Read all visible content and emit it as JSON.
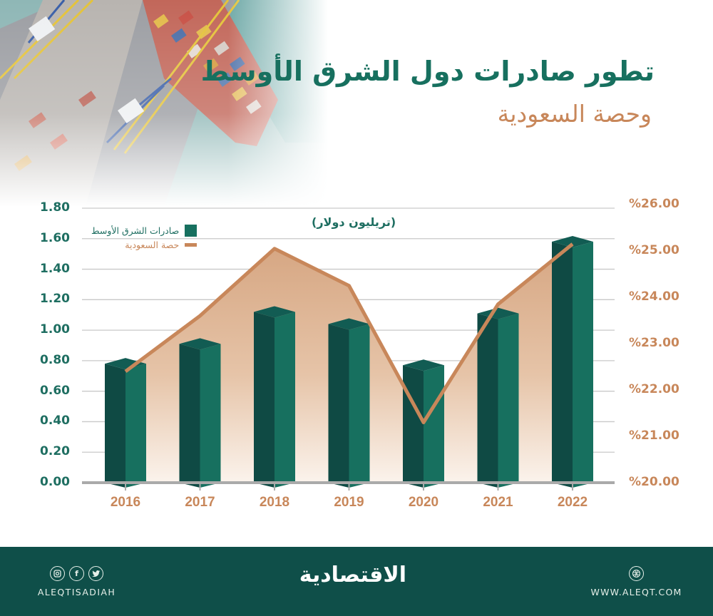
{
  "header": {
    "title": "تطور صادرات دول الشرق الأوسط",
    "subtitle": "وحصة السعودية"
  },
  "chart": {
    "unit_label": "(تريليون دولار)",
    "legend": [
      {
        "label": "صادرات الشرق الأوسط",
        "kind": "bar",
        "color": "#17705f"
      },
      {
        "label": "حصة السعودية",
        "kind": "line",
        "color": "#c8875a"
      }
    ],
    "left_ticks": [
      "1.80",
      "1.60",
      "1.40",
      "1.20",
      "1.00",
      "0.80",
      "0.60",
      "0.40",
      "0.20",
      "0.00"
    ],
    "right_ticks": [
      "%26.00",
      "%25.00",
      "%24.00",
      "%23.00",
      "%22.00",
      "%21.00",
      "%20.00"
    ],
    "years": [
      "2016",
      "2017",
      "2018",
      "2019",
      "2020",
      "2021",
      "2022"
    ]
  },
  "chart_data": {
    "type": "bar",
    "title": "تطور صادرات دول الشرق الأوسط وحصة السعودية",
    "subtitle": "(تريليون دولار)",
    "categories": [
      "2016",
      "2017",
      "2018",
      "2019",
      "2020",
      "2021",
      "2022"
    ],
    "series": [
      {
        "name": "صادرات الشرق الأوسط",
        "type": "bar",
        "axis": "left",
        "unit": "trillion USD",
        "color": "#17705f",
        "values": [
          0.78,
          0.91,
          1.12,
          1.04,
          0.77,
          1.11,
          1.58
        ]
      },
      {
        "name": "حصة السعودية",
        "type": "area-line",
        "axis": "right",
        "unit": "%",
        "color": "#c8875a",
        "values": [
          22.4,
          23.6,
          25.05,
          24.25,
          21.3,
          23.85,
          25.15
        ]
      }
    ],
    "left_axis": {
      "ylim": [
        0,
        1.8
      ],
      "ticks": [
        0,
        0.2,
        0.4,
        0.6,
        0.8,
        1.0,
        1.2,
        1.4,
        1.6,
        1.8
      ]
    },
    "right_axis": {
      "ylim": [
        20,
        26
      ],
      "ticks": [
        20,
        21,
        22,
        23,
        24,
        25,
        26
      ],
      "format": "%XX.00"
    },
    "grid": true,
    "legend_position": "top-left"
  },
  "footer": {
    "social_icons": [
      "instagram-icon",
      "facebook-icon",
      "twitter-icon"
    ],
    "social_glyphs": {
      "instagram": "◎",
      "facebook": "f",
      "twitter": "t"
    },
    "handle": "ALEQTISADIAH",
    "logo": "الاقتصادية",
    "url": "WWW.ALEQT.COM"
  }
}
